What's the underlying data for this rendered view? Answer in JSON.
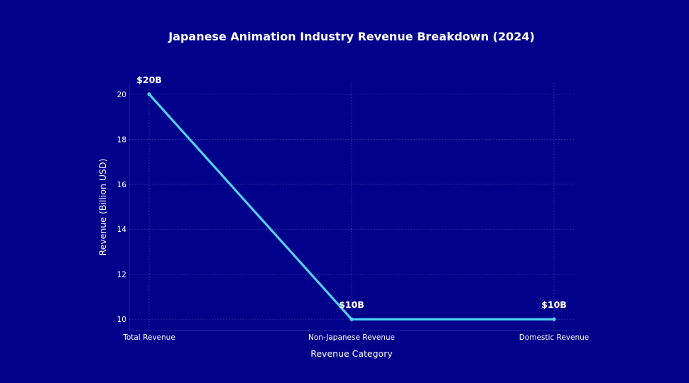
{
  "colors": {
    "background": "#00008b",
    "line": "#4fd3f0",
    "text": "#ffffff"
  },
  "chart_data": {
    "type": "line",
    "title": "Japanese Animation Industry Revenue Breakdown (2024)",
    "xlabel": "Revenue Category",
    "ylabel": "Revenue (Billion USD)",
    "categories": [
      "Total Revenue",
      "Non-Japanese Revenue",
      "Domestic Revenue"
    ],
    "series": [
      {
        "values": [
          20,
          10,
          10
        ]
      }
    ],
    "data_labels": [
      "$20B",
      "$10B",
      "$10B"
    ],
    "yticks": [
      10,
      12,
      14,
      16,
      18,
      20
    ],
    "ylim": [
      9.5,
      20.5
    ],
    "grid": true,
    "legend": false
  }
}
